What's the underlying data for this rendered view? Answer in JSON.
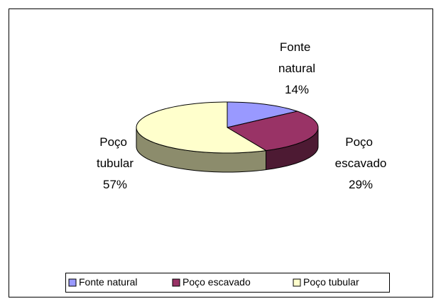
{
  "chart_data": {
    "type": "pie",
    "categories": [
      "Fonte natural",
      "Poço escavado",
      "Poço tubular"
    ],
    "values": [
      14,
      29,
      57
    ],
    "value_labels": [
      "14%",
      "29%",
      "57%"
    ],
    "colors": [
      "#9999ff",
      "#993366",
      "#ffffcc"
    ],
    "side_colors": [
      "#4d4d80",
      "#4d1a33",
      "#8c8c6c"
    ],
    "legend": "bottom"
  }
}
